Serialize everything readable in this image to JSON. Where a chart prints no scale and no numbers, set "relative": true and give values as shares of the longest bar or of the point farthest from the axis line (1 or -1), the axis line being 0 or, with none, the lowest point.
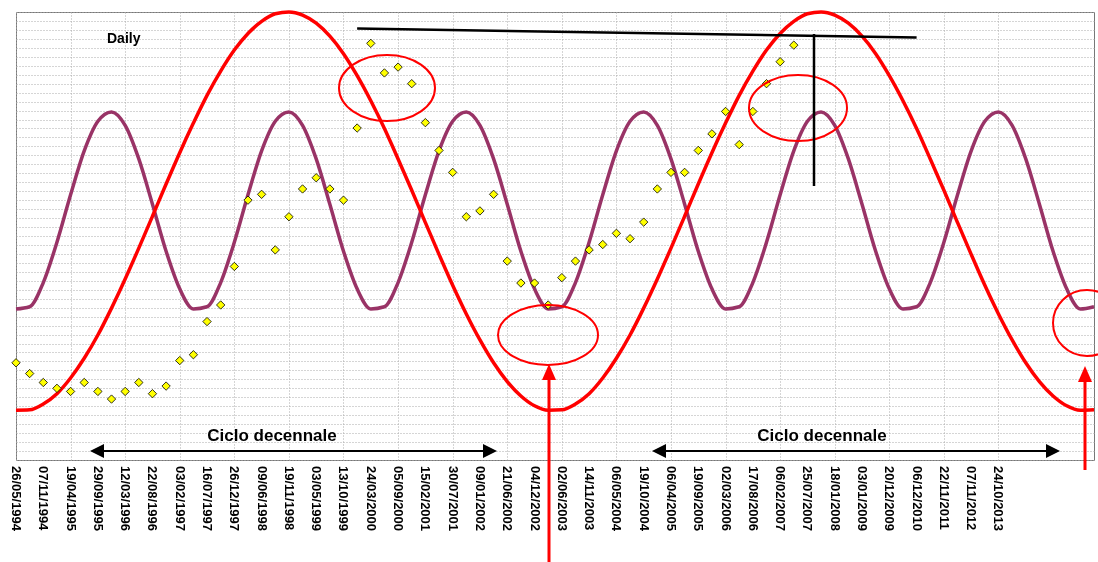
{
  "chart_data": {
    "type": "line",
    "title": "Daily",
    "relative": true,
    "grid": true,
    "tick_labels": "x",
    "categories": [
      "26/05/1994",
      null,
      "07/11/1994",
      null,
      "19/04/1995",
      null,
      "29/09/1995",
      null,
      "12/03/1996",
      null,
      "22/08/1996",
      null,
      "03/02/1997",
      null,
      "16/07/1997",
      null,
      "26/12/1997",
      null,
      "09/06/1998",
      null,
      "19/11/1998",
      null,
      "03/05/1999",
      null,
      "13/10/1999",
      null,
      "24/03/2000",
      null,
      "05/09/2000",
      null,
      "15/02/2001",
      null,
      "30/07/2001",
      null,
      "09/01/2002",
      null,
      "21/06/2002",
      null,
      "04/12/2002",
      null,
      "02/06/2003",
      null,
      "14/11/2003",
      null,
      "06/05/2004",
      null,
      "19/10/2004",
      null,
      "06/04/2005",
      null,
      "19/09/2005",
      null,
      "02/03/2006",
      null,
      "17/08/2006",
      null,
      "06/02/2007",
      null,
      "25/07/2007",
      null,
      "18/01/2008",
      null,
      "03/01/2009",
      null,
      "20/12/2009",
      null,
      "06/12/2010",
      null,
      "22/11/2011",
      null,
      "07/11/2012",
      null,
      "24/10/2013",
      null,
      null,
      null,
      null,
      null,
      null,
      null
    ],
    "series": [
      {
        "color": "#993366",
        "values": [
          0.337,
          0.342,
          0.396,
          0.486,
          0.592,
          0.69,
          0.756,
          0.777,
          0.747,
          0.672,
          0.571,
          0.466,
          0.382,
          0.337,
          0.342,
          0.396,
          0.486,
          0.592,
          0.69,
          0.756,
          0.777,
          0.747,
          0.672,
          0.571,
          0.466,
          0.382,
          0.337,
          0.342,
          0.396,
          0.486,
          0.592,
          0.69,
          0.756,
          0.777,
          0.747,
          0.672,
          0.571,
          0.466,
          0.382,
          0.337,
          0.342,
          0.396,
          0.486,
          0.592,
          0.69,
          0.756,
          0.777,
          0.747,
          0.672,
          0.571,
          0.466,
          0.382,
          0.337,
          0.342,
          0.396,
          0.486,
          0.592,
          0.69,
          0.756,
          0.777,
          0.747,
          0.672,
          0.571,
          0.466,
          0.382,
          0.337,
          0.342,
          0.396,
          0.486,
          0.592,
          0.69,
          0.756,
          0.777,
          0.747,
          0.672,
          0.571,
          0.466,
          0.382,
          0.337,
          0.342
        ]
      },
      {
        "color": "#ff0000",
        "values": [
          0.111,
          0.112,
          0.125,
          0.148,
          0.183,
          0.227,
          0.279,
          0.339,
          0.404,
          0.473,
          0.544,
          0.616,
          0.686,
          0.752,
          0.814,
          0.868,
          0.915,
          0.952,
          0.979,
          0.996,
          1.0,
          0.993,
          0.975,
          0.946,
          0.907,
          0.858,
          0.802,
          0.74,
          0.672,
          0.602,
          0.53,
          0.459,
          0.39,
          0.326,
          0.268,
          0.217,
          0.175,
          0.143,
          0.121,
          0.111,
          0.112,
          0.125,
          0.148,
          0.183,
          0.227,
          0.279,
          0.339,
          0.404,
          0.473,
          0.544,
          0.616,
          0.686,
          0.752,
          0.814,
          0.868,
          0.915,
          0.952,
          0.979,
          0.996,
          1.0,
          0.993,
          0.975,
          0.946,
          0.907,
          0.858,
          0.802,
          0.74,
          0.672,
          0.602,
          0.53,
          0.459,
          0.39,
          0.326,
          0.268,
          0.217,
          0.175,
          0.143,
          0.121,
          0.111,
          0.112
        ]
      },
      {
        "type": "scatter",
        "color": "#ffff00",
        "marker": "diamond",
        "values": [
          0.217,
          0.193,
          0.173,
          0.16,
          0.153,
          0.173,
          0.153,
          0.136,
          0.153,
          0.173,
          0.148,
          0.165,
          0.222,
          0.235,
          0.309,
          0.346,
          0.432,
          0.58,
          0.593,
          0.469,
          0.543,
          0.605,
          0.63,
          0.605,
          0.58,
          0.741,
          0.93,
          0.864,
          0.877,
          0.84,
          0.753,
          0.691,
          0.642,
          0.543,
          0.556,
          0.593,
          0.444,
          0.395,
          0.395,
          0.346,
          0.407,
          0.444,
          0.469,
          0.481,
          0.506,
          0.494,
          0.531,
          0.605,
          0.642,
          0.642,
          0.691,
          0.728,
          0.778,
          0.704,
          0.778,
          0.84,
          0.889,
          0.926,
          null,
          null,
          null,
          null,
          null,
          null,
          null,
          null,
          null,
          null,
          null,
          null,
          null,
          null,
          null,
          null,
          null,
          null,
          null,
          null,
          null,
          null
        ]
      },
      {
        "color": "#000000",
        "values": [
          null,
          null,
          null,
          null,
          null,
          null,
          null,
          null,
          null,
          null,
          null,
          null,
          null,
          null,
          null,
          null,
          null,
          null,
          null,
          null,
          null,
          null,
          null,
          null,
          null,
          0.963,
          null,
          null,
          null,
          null,
          null,
          null,
          null,
          null,
          null,
          null,
          null,
          null,
          null,
          null,
          null,
          null,
          null,
          null,
          null,
          null,
          null,
          null,
          null,
          null,
          null,
          null,
          null,
          null,
          null,
          null,
          null,
          null,
          null,
          null,
          null,
          null,
          null,
          null,
          null,
          null,
          0.943,
          null,
          null,
          null,
          null,
          null,
          null,
          null,
          null,
          null,
          null,
          null,
          null,
          null
        ]
      }
    ],
    "annotations": [
      "Ciclo decennale",
      "Ciclo decennale"
    ]
  }
}
